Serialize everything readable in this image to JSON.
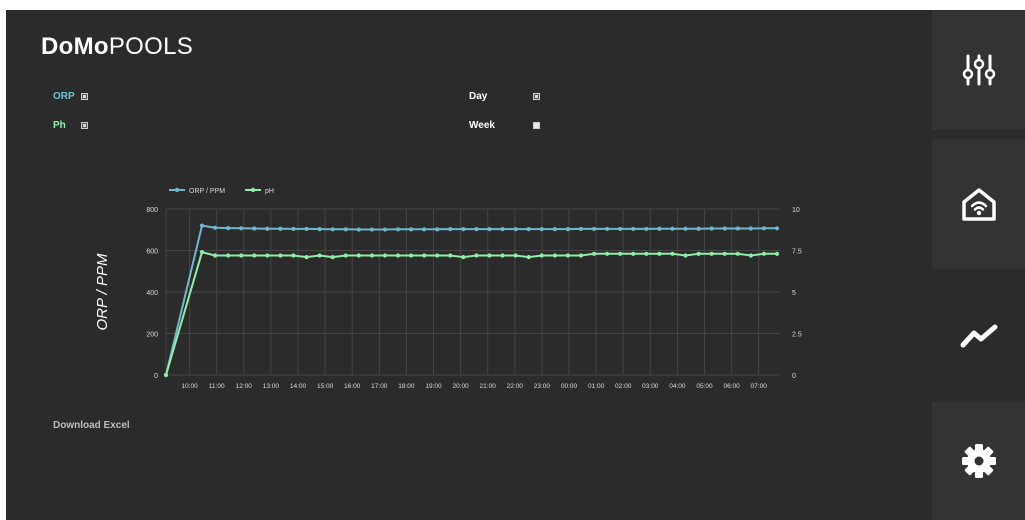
{
  "app": {
    "brand_bold": "DoMo",
    "brand_light": "POOLS"
  },
  "toggles": {
    "orp": {
      "label": "ORP",
      "checked": true,
      "color": "#6fc3d6"
    },
    "ph": {
      "label": "Ph",
      "checked": true,
      "color": "#8ff0a6"
    },
    "day": {
      "label": "Day",
      "checked": true
    },
    "week": {
      "label": "Week",
      "checked": false
    }
  },
  "chart_data": {
    "type": "line",
    "y_left": {
      "label": "ORP / PPM",
      "range": [
        0,
        800
      ],
      "ticks": [
        "0",
        "200",
        "400",
        "600",
        "800"
      ]
    },
    "y_right": {
      "label": "pH",
      "range": [
        0,
        10
      ],
      "ticks": [
        "0",
        "2.5",
        "5",
        "7.5",
        "10"
      ]
    },
    "x_tick_labels": [
      "10:00",
      "11:00",
      "12:00",
      "13:00",
      "14:00",
      "15:00",
      "16:00",
      "17:00",
      "18:00",
      "19:00",
      "20:00",
      "21:00",
      "22:00",
      "23:00",
      "00:00",
      "01:00",
      "02:00",
      "03:00",
      "04:00",
      "05:00",
      "06:00",
      "07:00"
    ],
    "grid": true,
    "legend_position": "top-left",
    "series": [
      {
        "name": "ORP / PPM",
        "axis": "left",
        "color": "#6fb8cc",
        "values": [
          0,
          720,
          710,
          708,
          707,
          706,
          705,
          705,
          704,
          704,
          703,
          702,
          702,
          701,
          701,
          701,
          702,
          702,
          702,
          702,
          703,
          703,
          703,
          703,
          703,
          703,
          703,
          703,
          703,
          703,
          704,
          704,
          704,
          704,
          704,
          704,
          705,
          705,
          705,
          705,
          706,
          706,
          706,
          706,
          707,
          707
        ]
      },
      {
        "name": "pH",
        "axis": "right",
        "color": "#90eeaa",
        "values": [
          0,
          7.4,
          7.2,
          7.2,
          7.2,
          7.2,
          7.2,
          7.2,
          7.2,
          7.1,
          7.2,
          7.1,
          7.2,
          7.2,
          7.2,
          7.2,
          7.2,
          7.2,
          7.2,
          7.2,
          7.2,
          7.1,
          7.2,
          7.2,
          7.2,
          7.2,
          7.1,
          7.2,
          7.2,
          7.2,
          7.2,
          7.3,
          7.3,
          7.3,
          7.3,
          7.3,
          7.3,
          7.3,
          7.2,
          7.3,
          7.3,
          7.3,
          7.3,
          7.2,
          7.3,
          7.3
        ]
      }
    ]
  },
  "footer": {
    "download_label": "Download Excel"
  },
  "sidebar": {
    "items": [
      {
        "name": "controls",
        "icon": "sliders-icon"
      },
      {
        "name": "home",
        "icon": "smart-home-icon"
      },
      {
        "name": "charts",
        "icon": "trend-line-icon",
        "active": true
      },
      {
        "name": "settings",
        "icon": "gear-icon"
      }
    ]
  }
}
